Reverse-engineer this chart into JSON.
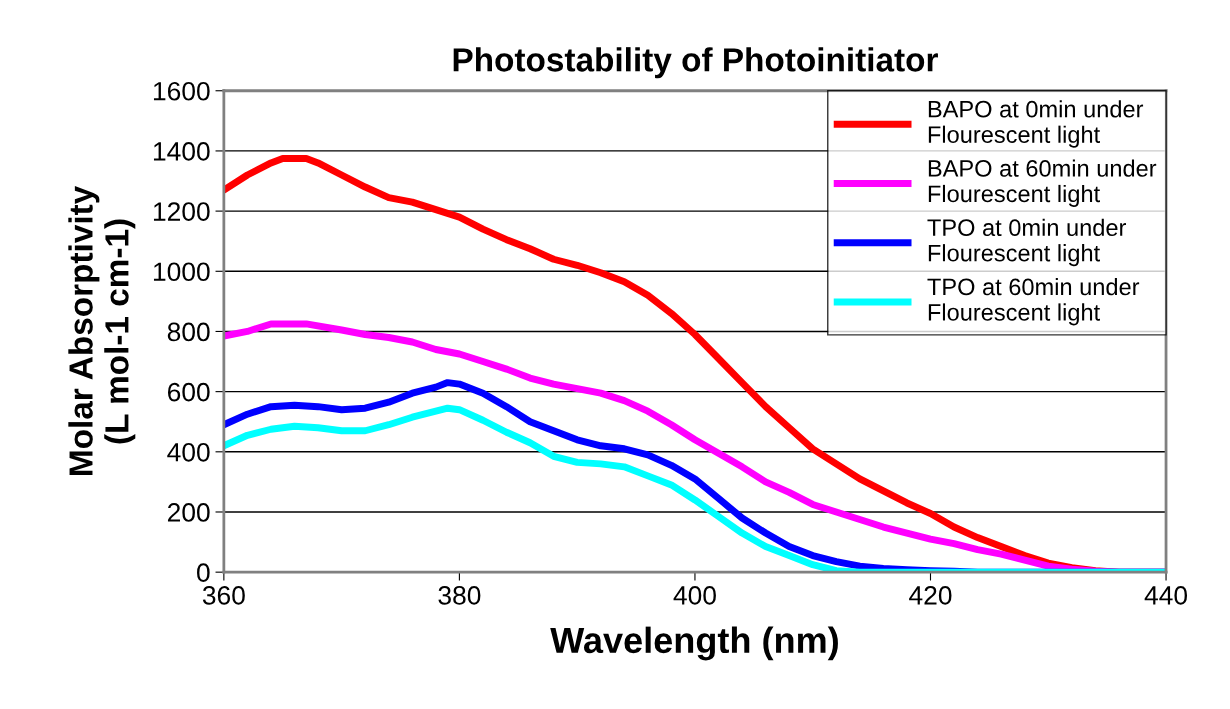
{
  "chart_data": {
    "type": "line",
    "title": "Photostability of Photoinitiator",
    "xlabel": "Wavelength (nm)",
    "ylabel": "Molar Absorptivity\n(L mol-1 cm-1)",
    "xlim": [
      360,
      440
    ],
    "xticks": [
      360,
      380,
      400,
      420,
      440
    ],
    "ylim": [
      0,
      1600
    ],
    "yticks": [
      0,
      200,
      400,
      600,
      800,
      1000,
      1200,
      1400,
      1600
    ],
    "grid": "y",
    "legend": "top right",
    "marker": "none",
    "line_style": "solid",
    "series": [
      {
        "name": "BAPO at 0min under\nFlourescent light",
        "color": "#ff0000",
        "x": [
          360,
          362,
          364,
          365,
          367,
          368,
          370,
          372,
          374,
          376,
          378,
          380,
          382,
          384,
          386,
          388,
          390,
          392,
          394,
          396,
          398,
          400,
          402,
          404,
          406,
          408,
          410,
          412,
          414,
          416,
          418,
          420,
          422,
          424,
          426,
          428,
          430,
          432,
          434,
          436,
          440
        ],
        "values": [
          1270,
          1320,
          1360,
          1375,
          1375,
          1360,
          1320,
          1280,
          1245,
          1230,
          1205,
          1180,
          1140,
          1105,
          1075,
          1040,
          1020,
          995,
          965,
          920,
          860,
          790,
          710,
          630,
          550,
          480,
          410,
          360,
          310,
          270,
          230,
          195,
          150,
          115,
          85,
          55,
          30,
          15,
          5,
          0,
          0
        ]
      },
      {
        "name": "BAPO at 60min under\nFlourescent light",
        "color": "#ff00ff",
        "x": [
          360,
          362,
          364,
          367,
          370,
          372,
          374,
          376,
          378,
          380,
          382,
          384,
          386,
          388,
          390,
          392,
          394,
          396,
          398,
          400,
          402,
          404,
          406,
          408,
          410,
          412,
          414,
          416,
          418,
          420,
          422,
          424,
          426,
          428,
          430,
          432,
          434,
          436,
          440
        ],
        "values": [
          785,
          800,
          825,
          825,
          805,
          790,
          780,
          765,
          740,
          725,
          700,
          675,
          645,
          625,
          610,
          595,
          570,
          535,
          490,
          440,
          395,
          350,
          300,
          265,
          225,
          200,
          175,
          150,
          130,
          110,
          95,
          75,
          60,
          40,
          20,
          10,
          3,
          0,
          0
        ]
      },
      {
        "name": "TPO at 0min under\nFlourescent light",
        "color": "#0000ff",
        "x": [
          360,
          362,
          364,
          366,
          368,
          370,
          372,
          374,
          376,
          378,
          379,
          380,
          382,
          384,
          386,
          388,
          390,
          392,
          394,
          396,
          398,
          400,
          402,
          404,
          406,
          408,
          410,
          412,
          414,
          416,
          418,
          420,
          422,
          424,
          440
        ],
        "values": [
          490,
          525,
          550,
          555,
          550,
          540,
          545,
          565,
          595,
          615,
          630,
          625,
          595,
          550,
          500,
          470,
          440,
          420,
          410,
          390,
          355,
          310,
          245,
          180,
          130,
          85,
          55,
          35,
          20,
          12,
          8,
          5,
          3,
          0,
          0
        ]
      },
      {
        "name": "TPO at 60min under\nFlourescent light",
        "color": "#00ffff",
        "x": [
          360,
          362,
          364,
          366,
          368,
          370,
          372,
          374,
          376,
          378,
          379,
          380,
          382,
          384,
          386,
          388,
          390,
          392,
          394,
          396,
          398,
          400,
          402,
          404,
          406,
          408,
          410,
          412,
          414,
          440
        ],
        "values": [
          420,
          455,
          475,
          485,
          480,
          470,
          470,
          490,
          515,
          535,
          545,
          540,
          505,
          465,
          430,
          385,
          365,
          360,
          350,
          320,
          290,
          240,
          185,
          130,
          85,
          55,
          25,
          5,
          0,
          0
        ]
      }
    ]
  }
}
